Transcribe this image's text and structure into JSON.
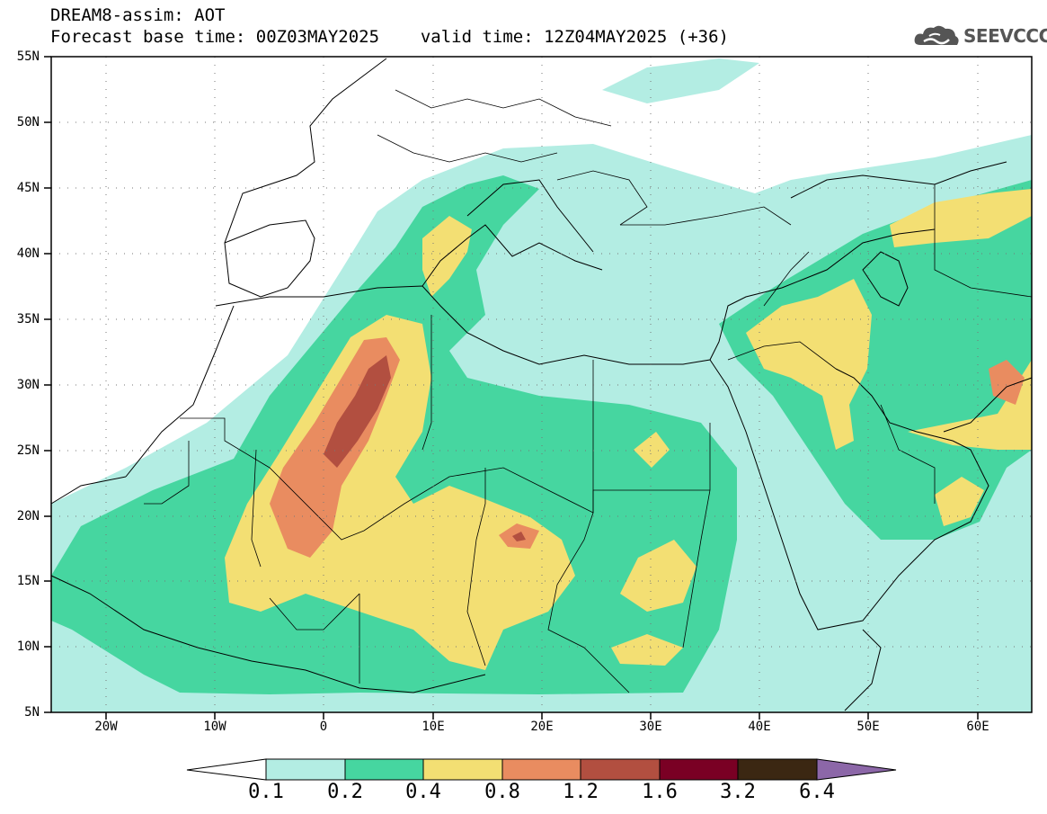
{
  "header": {
    "title_line1": "DREAM8-assim: AOT",
    "base_time_text": "Forecast base time: 00Z03MAY2025",
    "valid_time_text": "valid time: 12Z04MAY2025 (+36)"
  },
  "logo": {
    "text": "SEEVCCC",
    "icon": "cloud-logo-icon",
    "color": "#555555"
  },
  "map": {
    "variable": "AOT",
    "lon_range": [
      -25,
      65
    ],
    "lat_range": [
      5,
      55
    ],
    "lat_ticks": [
      "55N",
      "50N",
      "45N",
      "40N",
      "35N",
      "30N",
      "25N",
      "20N",
      "15N",
      "10N",
      "5N"
    ],
    "lon_ticks": [
      "20W",
      "10W",
      "0",
      "10E",
      "20E",
      "30E",
      "40E",
      "50E",
      "60E"
    ],
    "gridlines": "dotted"
  },
  "colorbar": {
    "labels": [
      "0.1",
      "0.2",
      "0.4",
      "0.8",
      "1.2",
      "1.6",
      "3.2",
      "6.4"
    ],
    "colors": [
      "#ffffff",
      "#b3ede3",
      "#46d6a0",
      "#f3df73",
      "#e98c60",
      "#b24f40",
      "#7a0024",
      "#3b2712",
      "#8c67a8"
    ]
  }
}
